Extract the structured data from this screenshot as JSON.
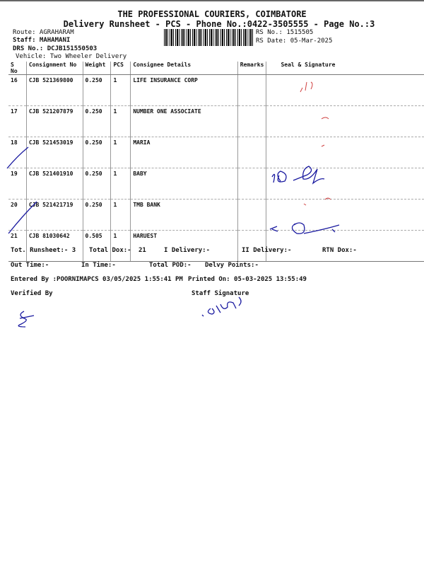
{
  "header": {
    "title": "THE PROFESSIONAL COURIERS, COIMBATORE",
    "subtitle": "Delivery Runsheet - PCS - Phone No.:0422-3505555 - Page No.:3",
    "route": "Route: AGRAHARAM",
    "staff": "Staff: MAHAMANI",
    "drs": "DRS No.: DCJB151550503",
    "vehicle": "Vehicle: Two Wheeler Delivery",
    "rs_no": "RS No.: 1515505",
    "rs_date": "RS Date: 05-Mar-2025"
  },
  "table": {
    "columns": [
      "S No",
      "Consignment No",
      "Weight",
      "PCS",
      "Consignee Details",
      "Remarks",
      "Seal & Signature"
    ],
    "rows": [
      {
        "sno": "16",
        "cn": "CJB 521369800",
        "weight": "0.250",
        "pcs": "1",
        "consignee": "LIFE INSURANCE CORP"
      },
      {
        "sno": "17",
        "cn": "CJB 521207879",
        "weight": "0.250",
        "pcs": "1",
        "consignee": "NUMBER ONE ASSOCIATE"
      },
      {
        "sno": "18",
        "cn": "CJB 521453019",
        "weight": "0.250",
        "pcs": "1",
        "consignee": "MARIA"
      },
      {
        "sno": "19",
        "cn": "CJB 521401910",
        "weight": "0.250",
        "pcs": "1",
        "consignee": "BABY"
      },
      {
        "sno": "20",
        "cn": "CJB 521421719",
        "weight": "0.250",
        "pcs": "1",
        "consignee": "TMB BANK"
      },
      {
        "sno": "21",
        "cn": "CJB 81030642",
        "weight": "0.505",
        "pcs": "1",
        "consignee": "HARUEST"
      }
    ]
  },
  "footer": {
    "tot_runsheet": "Tot. Runsheet:- 3",
    "total_dox": "Total Dox:-",
    "total_dox_val": "21",
    "i_delivery": "I Delivery:-",
    "ii_delivery": "II Delivery:-",
    "rtn_dox": "RTN Dox:-",
    "out_time": "Out Time:-",
    "in_time": "In Time:-",
    "total_pod": "Total POD:-",
    "delvy_points": "Delvy Points:-",
    "entered_by": "Entered By :POORNIMAPCS 03/05/2025 1:55:41 PM",
    "printed_on": "Printed On: 05-03-2025 13:55:49",
    "verified_by": "Verified By",
    "staff_signature": "Staff Signature"
  },
  "colors": {
    "ink_blue": "#1a1aa0",
    "ink_red": "#d04040"
  }
}
